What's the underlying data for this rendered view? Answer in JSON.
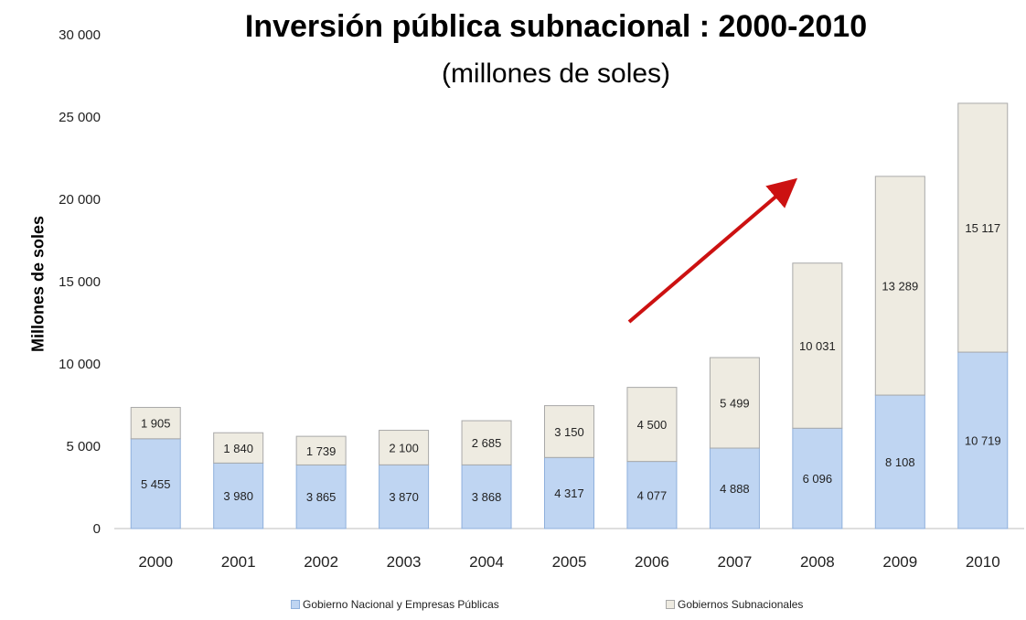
{
  "colors": {
    "nacional": "#bfd5f2",
    "nacional_border": "#8fb0dc",
    "subnacional": "#eeebe1",
    "subnacional_border": "#a9a9a9",
    "arrow": "#cc1111"
  },
  "chart_data": {
    "type": "bar",
    "stacked": true,
    "title": "Inversión pública subnacional : 2000-2010",
    "subtitle": "(millones de soles)",
    "xlabel": "",
    "ylabel": "Millones de soles",
    "ylim": [
      0,
      30000
    ],
    "yticks": [
      0,
      5000,
      10000,
      15000,
      20000,
      25000,
      30000
    ],
    "ytick_labels": [
      "0",
      "5 000",
      "10 000",
      "15 000",
      "20 000",
      "25 000",
      "30 000"
    ],
    "categories": [
      "2000",
      "2001",
      "2002",
      "2003",
      "2004",
      "2005",
      "2006",
      "2007",
      "2008",
      "2009",
      "2010"
    ],
    "series": [
      {
        "name": "Gobierno Nacional y Empresas Públicas",
        "values": [
          5455,
          3980,
          3865,
          3870,
          3868,
          4317,
          4077,
          4888,
          6096,
          8108,
          10719
        ],
        "labels": [
          "5 455",
          "3 980",
          "3 865",
          "3 870",
          "3 868",
          "4 317",
          "4 077",
          "4 888",
          "6 096",
          "8 108",
          "10 719"
        ]
      },
      {
        "name": "Gobiernos Subnacionales",
        "values": [
          1905,
          1840,
          1739,
          2100,
          2685,
          3150,
          4500,
          5499,
          10031,
          13289,
          15117
        ],
        "labels": [
          "1 905",
          "1 840",
          "1 739",
          "2 100",
          "2 685",
          "3 150",
          "4 500",
          "5 499",
          "10 031",
          "13 289",
          "15 117"
        ]
      }
    ],
    "legend_position": "bottom",
    "grid": false,
    "annotation": "red arrow pointing up-right"
  }
}
